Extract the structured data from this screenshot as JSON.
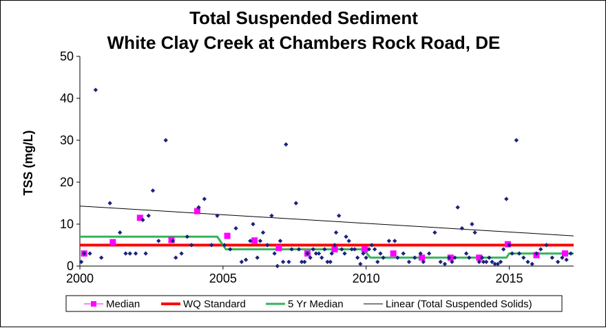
{
  "chart_data": {
    "type": "scatter",
    "title_lines": [
      "Total Suspended Sediment",
      "White Clay Creek at Chambers Rock Road, DE"
    ],
    "xlabel": "",
    "ylabel": "TSS (mg/L)",
    "xlim": [
      2000,
      2017.25
    ],
    "ylim": [
      0,
      50
    ],
    "x_ticks": [
      2000,
      2005,
      2010,
      2015
    ],
    "y_ticks": [
      0,
      10,
      20,
      30,
      40,
      50
    ],
    "grid": false,
    "legend_position": "bottom",
    "colors": {
      "samples": "#1a237e",
      "median": "#ff00ff",
      "wq_standard": "#ff0000",
      "five_yr_median": "#33b35a",
      "linear": "#000000"
    },
    "series": [
      {
        "kind": "points",
        "x": [
          2000.05,
          2000.15,
          2000.35,
          2000.55,
          2000.75,
          2001.05,
          2001.4,
          2001.6,
          2001.75,
          2001.95,
          2002.2,
          2002.3,
          2002.4,
          2002.55,
          2002.75,
          2003.0,
          2003.25,
          2003.35,
          2003.55,
          2003.75,
          2003.9,
          2004.15,
          2004.35,
          2004.6,
          2004.8,
          2005.05,
          2005.25,
          2005.45,
          2005.65,
          2005.8,
          2005.95,
          2006.05,
          2006.2,
          2006.3,
          2006.4,
          2006.55,
          2006.7,
          2006.8,
          2006.9,
          2007.0,
          2007.1,
          2007.2,
          2007.3,
          2007.4,
          2007.55,
          2007.65,
          2007.75,
          2007.85,
          2007.95,
          2008.05,
          2008.15,
          2008.25,
          2008.35,
          2008.45,
          2008.55,
          2008.65,
          2008.75,
          2008.8,
          2008.9,
          2008.95,
          2009.05,
          2009.15,
          2009.25,
          2009.3,
          2009.4,
          2009.5,
          2009.6,
          2009.7,
          2009.8,
          2009.9,
          2010.0,
          2010.1,
          2010.2,
          2010.3,
          2010.4,
          2010.5,
          2010.6,
          2010.8,
          2011.0,
          2011.1,
          2011.3,
          2011.5,
          2011.7,
          2011.9,
          2012.0,
          2012.2,
          2012.4,
          2012.6,
          2012.75,
          2012.9,
          2013.0,
          2013.1,
          2013.2,
          2013.35,
          2013.5,
          2013.6,
          2013.7,
          2013.8,
          2013.95,
          2014.05,
          2014.1,
          2014.2,
          2014.3,
          2014.4,
          2014.5,
          2014.6,
          2014.7,
          2014.8,
          2014.9,
          2015.0,
          2015.1,
          2015.25,
          2015.35,
          2015.5,
          2015.65,
          2015.8,
          2015.95,
          2016.1,
          2016.3,
          2016.5,
          2016.7,
          2016.85,
          2017.0,
          2017.15
        ],
        "y": [
          1.0,
          3.0,
          3.0,
          42.0,
          2.0,
          15.0,
          8.0,
          3.0,
          3.0,
          3.0,
          11.0,
          3.0,
          12.0,
          18.0,
          6.0,
          30.0,
          6.0,
          2.0,
          3.0,
          7.0,
          5.0,
          14.0,
          16.0,
          5.0,
          12.0,
          5.0,
          4.0,
          9.0,
          1.0,
          1.5,
          6.0,
          10.0,
          2.0,
          6.0,
          8.0,
          5.0,
          12.0,
          3.0,
          0.0,
          6.0,
          1.0,
          29.0,
          1.0,
          4.0,
          15.0,
          4.0,
          1.0,
          1.0,
          3.0,
          2.0,
          4.0,
          3.0,
          3.0,
          2.0,
          4.0,
          1.0,
          1.0,
          3.0,
          5.0,
          8.0,
          12.0,
          4.0,
          3.0,
          7.0,
          6.0,
          4.0,
          4.0,
          2.0,
          0.5,
          3.0,
          2.0,
          4.0,
          5.0,
          4.0,
          1.0,
          3.0,
          2.0,
          6.0,
          6.0,
          2.0,
          3.0,
          1.0,
          2.0,
          3.0,
          1.0,
          3.0,
          8.0,
          1.0,
          0.5,
          2.0,
          1.0,
          2.0,
          14.0,
          9.0,
          3.0,
          2.0,
          10.0,
          8.0,
          1.0,
          2.0,
          1.0,
          1.0,
          2.0,
          1.0,
          0.5,
          0.5,
          1.0,
          4.0,
          16.0,
          5.0,
          3.0,
          30.0,
          3.0,
          2.0,
          1.0,
          0.5,
          3.0,
          4.0,
          5.0,
          2.0,
          1.0,
          2.0,
          1.5,
          3.0
        ]
      },
      {
        "name": "Median",
        "kind": "markers",
        "x": [
          2000.15,
          2001.15,
          2002.1,
          2003.2,
          2004.1,
          2005.15,
          2006.1,
          2006.95,
          2007.95,
          2008.9,
          2009.95,
          2010.95,
          2011.95,
          2012.95,
          2013.95,
          2014.95,
          2015.95,
          2016.95
        ],
        "y": [
          3,
          5.7,
          11.5,
          6.2,
          13.1,
          7.2,
          6.1,
          4.3,
          3.0,
          4.0,
          4.0,
          3.0,
          2.0,
          2.0,
          2.0,
          5.2,
          2.6,
          3.0
        ]
      },
      {
        "name": "WQ Standard",
        "kind": "line",
        "x": [
          2000,
          2017.25
        ],
        "y": [
          5,
          5
        ]
      },
      {
        "name": "5 Yr Median",
        "kind": "step",
        "x": [
          2000,
          2004.8,
          2005.1,
          2009.9,
          2010.15,
          2014.9,
          2015.0,
          2017.25
        ],
        "y": [
          7,
          7,
          4,
          4,
          2,
          2,
          3,
          3
        ]
      },
      {
        "name": "Linear (Total Suspended Solids)",
        "kind": "line",
        "x": [
          2000,
          2017.25
        ],
        "y": [
          14.3,
          7.2
        ]
      }
    ]
  }
}
